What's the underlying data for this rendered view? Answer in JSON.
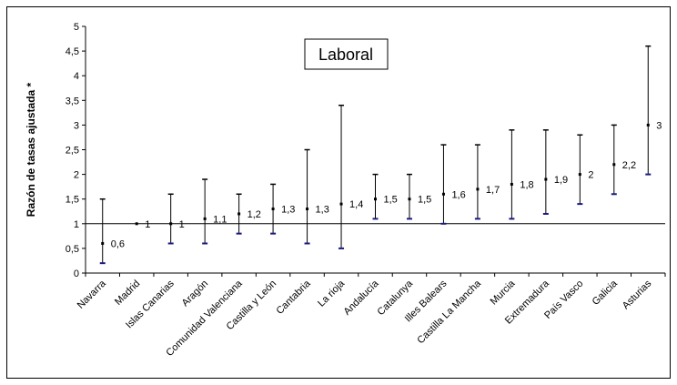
{
  "chart_data": {
    "type": "errorbar",
    "title": "Laboral",
    "ylabel": "Razón de tasas ajustada *",
    "xlabel": "",
    "ylim": [
      0,
      5
    ],
    "yticks": [
      "0",
      "0,5",
      "1",
      "1,5",
      "2",
      "2,5",
      "3",
      "3,5",
      "4",
      "4,5",
      "5"
    ],
    "reference_line": 1,
    "grid": false,
    "categories": [
      "Navarra",
      "Madrid",
      "Islas Canarias",
      "Aragón",
      "Comunidad Valenciana",
      "Castilla y León",
      "Cantabria",
      "La rioja",
      "Andalucía",
      "Catalunya",
      "Illes Balears",
      "Castilla La Mancha",
      "Murcia",
      "Extremadura",
      "País Vasco",
      "Galicia",
      "Asturias"
    ],
    "values": [
      0.6,
      1,
      1,
      1.1,
      1.2,
      1.3,
      1.3,
      1.4,
      1.5,
      1.5,
      1.6,
      1.7,
      1.8,
      1.9,
      2,
      2.2,
      3
    ],
    "value_labels": [
      "0,6",
      "1",
      "1",
      "1,1",
      "1,2",
      "1,3",
      "1,3",
      "1,4",
      "1,5",
      "1,5",
      "1,6",
      "1,7",
      "1,8",
      "1,9",
      "2",
      "2,2",
      "3"
    ],
    "lower": [
      0.2,
      1,
      0.6,
      0.6,
      0.8,
      0.8,
      0.6,
      0.5,
      1.1,
      1.1,
      1.0,
      1.1,
      1.1,
      1.2,
      1.4,
      1.6,
      2.0
    ],
    "upper": [
      1.5,
      1,
      1.6,
      1.9,
      1.6,
      1.8,
      2.5,
      3.4,
      2.0,
      2.0,
      2.6,
      2.6,
      2.9,
      2.9,
      2.8,
      3.0,
      4.6
    ]
  }
}
